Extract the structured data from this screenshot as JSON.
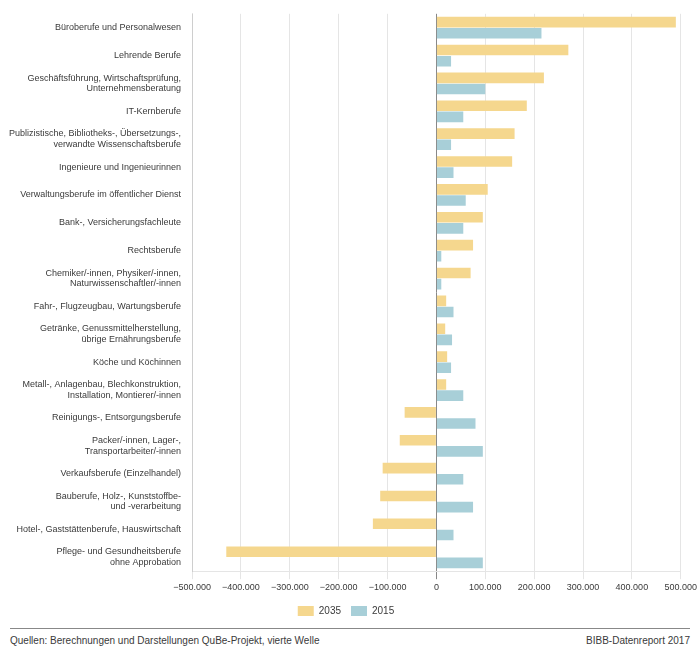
{
  "chart_data": {
    "type": "bar",
    "orientation": "horizontal",
    "categories": [
      "Büroberufe und Personalwesen",
      "Lehrende Berufe",
      "Geschäftsführung, Wirtschaftsprüfung,\nUnternehmensberatung",
      "IT-Kernberufe",
      "Publizistische, Bibliotheks-, Übersetzungs-,\nverwandte Wissenschaftsberufe",
      "Ingenieure und Ingenieurinnen",
      "Verwaltungsberufe im öffentlicher Dienst",
      "Bank-, Versicherungsfachleute",
      "Rechtsberufe",
      "Chemiker/-innen, Physiker/-innen,\nNaturwissenschaftler/-innen",
      "Fahr-, Flugzeugbau, Wartungsberufe",
      "Getränke, Genussmittelherstellung,\nübrige Ernährungsberufe",
      "Köche und Köchinnen",
      "Metall-, Anlagenbau, Blechkonstruktion,\nInstallation, Montierer/-innen",
      "Reinigungs-, Entsorgungsberufe",
      "Packer/-innen, Lager-,\nTransportarbeiter/-innen",
      "Verkaufsberufe (Einzelhandel)",
      "Bauberufe, Holz-, Kunststoffbe-\nund -verarbeitung",
      "Hotel-, Gaststättenberufe, Hauswirtschaft",
      "Pflege- und Gesundheitsberufe\nohne Approbation"
    ],
    "series": [
      {
        "name": "2035",
        "color": "#f5d78e",
        "values": [
          490000,
          270000,
          220000,
          185000,
          160000,
          155000,
          105000,
          95000,
          75000,
          70000,
          20000,
          18000,
          22000,
          20000,
          -65000,
          -75000,
          -110000,
          -115000,
          -130000,
          -430000
        ]
      },
      {
        "name": "2015",
        "color": "#a8cfd8",
        "values": [
          215000,
          30000,
          100000,
          55000,
          30000,
          35000,
          60000,
          55000,
          10000,
          10000,
          35000,
          32000,
          30000,
          55000,
          80000,
          95000,
          55000,
          75000,
          35000,
          95000
        ]
      }
    ],
    "xlim": [
      -500000,
      500000
    ],
    "xticks": [
      {
        "value": -500000,
        "label": "−500.000"
      },
      {
        "value": -400000,
        "label": "−400.000"
      },
      {
        "value": -300000,
        "label": "−300.000"
      },
      {
        "value": -200000,
        "label": "−200.000"
      },
      {
        "value": -100000,
        "label": "−100.000"
      },
      0,
      {
        "value": 100000,
        "label": "100.000"
      },
      {
        "value": 200000,
        "label": "200.000"
      },
      {
        "value": 300000,
        "label": "300.000"
      },
      {
        "value": 400000,
        "label": "400.000"
      },
      {
        "value": 500000,
        "label": "500.000"
      }
    ],
    "grid": true,
    "legend": "bottom",
    "annotations": [
      "Quellen: Berechnungen und Darstellungen QuBe-Projekt, vierte Welle",
      "BIBB-Datenreport 2017"
    ]
  }
}
